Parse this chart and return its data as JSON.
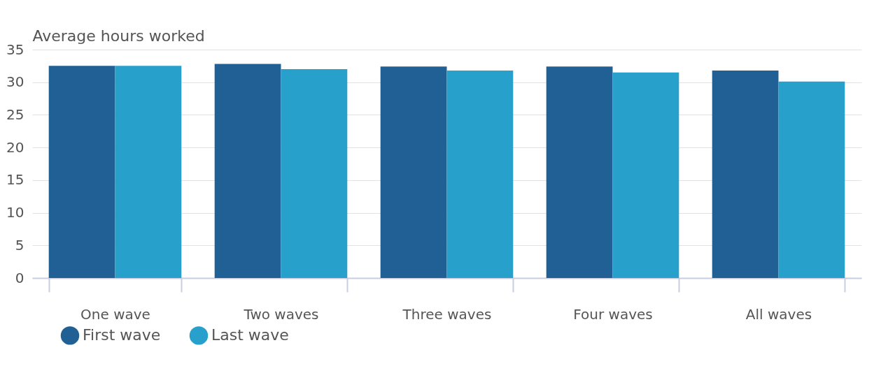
{
  "chart_data": {
    "type": "bar",
    "ylabel": "Average hours worked",
    "categories": [
      "One wave",
      "Two waves",
      "Three waves",
      "Four waves",
      "All waves"
    ],
    "series": [
      {
        "name": "First wave",
        "color": "#206095",
        "values": [
          32.5,
          32.8,
          32.4,
          32.4,
          31.8
        ]
      },
      {
        "name": "Last wave",
        "color": "#27a0cc",
        "values": [
          32.5,
          32.0,
          31.8,
          31.5,
          30.1
        ]
      }
    ],
    "ylim": [
      0,
      35
    ],
    "yticks": [
      0,
      5,
      10,
      15,
      20,
      25,
      30,
      35
    ],
    "grid": "y",
    "legend": "bottom left"
  }
}
